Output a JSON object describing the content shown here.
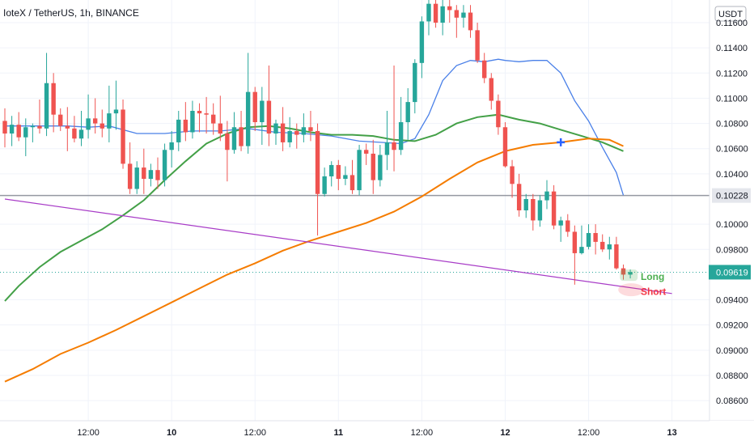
{
  "header": {
    "title": "IoteX / TetherUS, 1h, BINANCE"
  },
  "chart_data": {
    "type": "candlestick",
    "currency_label": "USDT",
    "y_ticks": [
      "0.11600",
      "0.11400",
      "0.11200",
      "0.11000",
      "0.10800",
      "0.10600",
      "0.10400",
      "0.10000",
      "0.09800",
      "0.09400",
      "0.09200",
      "0.09000",
      "0.08800",
      "0.08600"
    ],
    "x_ticks": [
      {
        "label": "12:00",
        "bold": false,
        "t": 3
      },
      {
        "label": "10",
        "bold": true,
        "t": 15
      },
      {
        "label": "12:00",
        "bold": false,
        "t": 27
      },
      {
        "label": "11",
        "bold": true,
        "t": 39
      },
      {
        "label": "12:00",
        "bold": false,
        "t": 51
      },
      {
        "label": "12",
        "bold": true,
        "t": 63
      },
      {
        "label": "12:00",
        "bold": false,
        "t": 75
      },
      {
        "label": "13",
        "bold": true,
        "t": 87
      }
    ],
    "ylim": [
      0.0844,
      0.1178
    ],
    "price_level": {
      "value": 0.10228,
      "label": "0.10228"
    },
    "last_price": {
      "value": 0.09619,
      "label": "0.09619"
    },
    "annotations": [
      {
        "text": "Long",
        "color": "#4caf50",
        "value": 0.09583
      },
      {
        "text": "Short",
        "color": "#f23645",
        "value": 0.09465
      }
    ],
    "candles": [
      [
        -9,
        0.1082,
        0.1092,
        0.1061,
        0.1072
      ],
      [
        -8,
        0.1072,
        0.1086,
        0.1062,
        0.1079
      ],
      [
        -7,
        0.1079,
        0.1089,
        0.1066,
        0.1069
      ],
      [
        -6,
        0.1069,
        0.1084,
        0.1054,
        0.1077
      ],
      [
        -5,
        0.1077,
        0.108,
        0.1065,
        0.1078
      ],
      [
        -4,
        0.1078,
        0.1099,
        0.1072,
        0.1076
      ],
      [
        -3,
        0.1076,
        0.1136,
        0.107,
        0.1112
      ],
      [
        -2,
        0.1112,
        0.112,
        0.1073,
        0.1087
      ],
      [
        -1,
        0.1087,
        0.1092,
        0.1074,
        0.1078
      ],
      [
        0,
        0.1078,
        0.1093,
        0.1058,
        0.1076
      ],
      [
        1,
        0.1076,
        0.1086,
        0.1065,
        0.1068
      ],
      [
        2,
        0.1068,
        0.109,
        0.1062,
        0.1075
      ],
      [
        3,
        0.1075,
        0.1103,
        0.1068,
        0.1084
      ],
      [
        4,
        0.1084,
        0.11,
        0.1072,
        0.108
      ],
      [
        5,
        0.108,
        0.1091,
        0.1069,
        0.1076
      ],
      [
        6,
        0.1076,
        0.111,
        0.1065,
        0.1088
      ],
      [
        7,
        0.1088,
        0.1114,
        0.1075,
        0.1091
      ],
      [
        8,
        0.1091,
        0.1099,
        0.1044,
        0.1048
      ],
      [
        9,
        0.1048,
        0.1065,
        0.1024,
        0.1028
      ],
      [
        10,
        0.1028,
        0.105,
        0.1024,
        0.1045
      ],
      [
        11,
        0.1045,
        0.106,
        0.1024,
        0.1036
      ],
      [
        12,
        0.1036,
        0.1048,
        0.103,
        0.1043
      ],
      [
        13,
        0.1043,
        0.1053,
        0.1028,
        0.1035
      ],
      [
        14,
        0.1035,
        0.1064,
        0.103,
        0.1059
      ],
      [
        15,
        0.1059,
        0.1074,
        0.1045,
        0.1065
      ],
      [
        16,
        0.1065,
        0.109,
        0.1058,
        0.1083
      ],
      [
        17,
        0.1083,
        0.1097,
        0.1066,
        0.1073
      ],
      [
        18,
        0.1073,
        0.1098,
        0.1068,
        0.109
      ],
      [
        19,
        0.109,
        0.1096,
        0.1073,
        0.1088
      ],
      [
        20,
        0.1088,
        0.1101,
        0.1072,
        0.1087
      ],
      [
        21,
        0.1087,
        0.1096,
        0.1071,
        0.108
      ],
      [
        22,
        0.108,
        0.1102,
        0.1066,
        0.1072
      ],
      [
        23,
        0.1072,
        0.1082,
        0.1034,
        0.1059
      ],
      [
        24,
        0.1059,
        0.1089,
        0.1056,
        0.1077
      ],
      [
        25,
        0.1077,
        0.109,
        0.1058,
        0.1062
      ],
      [
        26,
        0.1062,
        0.1136,
        0.1056,
        0.1105
      ],
      [
        27,
        0.1105,
        0.1109,
        0.1074,
        0.1081
      ],
      [
        28,
        0.1081,
        0.1109,
        0.1063,
        0.1098
      ],
      [
        29,
        0.1098,
        0.1126,
        0.1062,
        0.1072
      ],
      [
        30,
        0.1072,
        0.1083,
        0.1063,
        0.108
      ],
      [
        31,
        0.108,
        0.1093,
        0.1058,
        0.1065
      ],
      [
        32,
        0.1065,
        0.1085,
        0.1061,
        0.1074
      ],
      [
        33,
        0.1074,
        0.108,
        0.106,
        0.1071
      ],
      [
        34,
        0.1071,
        0.1088,
        0.1065,
        0.1077
      ],
      [
        35,
        0.1077,
        0.109,
        0.1066,
        0.1074
      ],
      [
        36,
        0.1074,
        0.108,
        0.0991,
        0.1024
      ],
      [
        37,
        0.1024,
        0.1045,
        0.1022,
        0.1038
      ],
      [
        38,
        0.1038,
        0.105,
        0.103,
        0.1047
      ],
      [
        39,
        0.1047,
        0.1051,
        0.1027,
        0.1036
      ],
      [
        40,
        0.1036,
        0.1046,
        0.1031,
        0.1039
      ],
      [
        41,
        0.1039,
        0.1051,
        0.1024,
        0.1027
      ],
      [
        42,
        0.1027,
        0.1063,
        0.1023,
        0.1059
      ],
      [
        43,
        0.1059,
        0.1064,
        0.1047,
        0.1056
      ],
      [
        44,
        0.1056,
        0.1067,
        0.1024,
        0.1035
      ],
      [
        45,
        0.1035,
        0.1063,
        0.103,
        0.1055
      ],
      [
        46,
        0.1055,
        0.109,
        0.1043,
        0.1065
      ],
      [
        47,
        0.1065,
        0.1126,
        0.1042,
        0.1059
      ],
      [
        48,
        0.1059,
        0.1101,
        0.1055,
        0.1081
      ],
      [
        49,
        0.1081,
        0.1108,
        0.1067,
        0.1097
      ],
      [
        50,
        0.1097,
        0.1131,
        0.1088,
        0.1128
      ],
      [
        51,
        0.1128,
        0.1165,
        0.1116,
        0.1161
      ],
      [
        52,
        0.1161,
        0.1178,
        0.115,
        0.1175
      ],
      [
        53,
        0.1175,
        0.118,
        0.1156,
        0.116
      ],
      [
        54,
        0.116,
        0.1178,
        0.115,
        0.1173
      ],
      [
        55,
        0.1173,
        0.118,
        0.116,
        0.117
      ],
      [
        56,
        0.117,
        0.1174,
        0.1148,
        0.1164
      ],
      [
        57,
        0.1164,
        0.1174,
        0.1156,
        0.1168
      ],
      [
        58,
        0.1168,
        0.1174,
        0.1148,
        0.1154
      ],
      [
        59,
        0.1154,
        0.116,
        0.1128,
        0.113
      ],
      [
        60,
        0.113,
        0.1136,
        0.1112,
        0.1116
      ],
      [
        61,
        0.1116,
        0.112,
        0.1091,
        0.1098
      ],
      [
        62,
        0.1098,
        0.1103,
        0.1071,
        0.1077
      ],
      [
        63,
        0.1077,
        0.1081,
        0.1045,
        0.1046
      ],
      [
        64,
        0.1046,
        0.1051,
        0.1021,
        0.1032
      ],
      [
        65,
        0.1032,
        0.104,
        0.1006,
        0.1011
      ],
      [
        66,
        0.1011,
        0.1024,
        0.1005,
        0.102
      ],
      [
        67,
        0.102,
        0.1024,
        0.0995,
        0.1003
      ],
      [
        68,
        0.1003,
        0.1023,
        0.0998,
        0.1019
      ],
      [
        69,
        0.1019,
        0.1035,
        0.1012,
        0.1026
      ],
      [
        70,
        0.1026,
        0.1031,
        0.0996,
        0.0999
      ],
      [
        71,
        0.0999,
        0.1006,
        0.0986,
        0.1003
      ],
      [
        72,
        0.1003,
        0.1008,
        0.099,
        0.0994
      ],
      [
        73,
        0.0994,
        0.0999,
        0.0952,
        0.0977
      ],
      [
        74,
        0.0977,
        0.0999,
        0.0976,
        0.0982
      ],
      [
        75,
        0.0982,
        0.1,
        0.098,
        0.0993
      ],
      [
        76,
        0.0993,
        0.1,
        0.0976,
        0.0986
      ],
      [
        77,
        0.0986,
        0.0992,
        0.0978,
        0.098
      ],
      [
        78,
        0.098,
        0.099,
        0.0972,
        0.0984
      ],
      [
        79,
        0.0984,
        0.099,
        0.0964,
        0.0965
      ],
      [
        80,
        0.0965,
        0.0968,
        0.0956,
        0.096
      ],
      [
        81,
        0.096,
        0.0964,
        0.0957,
        0.0962
      ]
    ],
    "series": [
      {
        "color": "#4a80e8",
        "values": [
          [
            -9,
            0.1078
          ],
          [
            0,
            0.1078
          ],
          [
            3,
            0.1077
          ],
          [
            6,
            0.1078
          ],
          [
            10,
            0.1072
          ],
          [
            14,
            0.1072
          ],
          [
            18,
            0.1074
          ],
          [
            22,
            0.1074
          ],
          [
            26,
            0.1076
          ],
          [
            30,
            0.1073
          ],
          [
            34,
            0.1072
          ],
          [
            38,
            0.107
          ],
          [
            42,
            0.1066
          ],
          [
            45,
            0.1065
          ],
          [
            48,
            0.1064
          ],
          [
            50,
            0.1068
          ],
          [
            52,
            0.1087
          ],
          [
            54,
            0.1114
          ],
          [
            56,
            0.1126
          ],
          [
            58,
            0.113
          ],
          [
            60,
            0.1129
          ],
          [
            62,
            0.1131
          ],
          [
            63,
            0.113
          ],
          [
            65,
            0.1129
          ],
          [
            67,
            0.113
          ],
          [
            69,
            0.113
          ],
          [
            71,
            0.112
          ],
          [
            73,
            0.1098
          ],
          [
            75,
            0.1082
          ],
          [
            77,
            0.1061
          ],
          [
            79,
            0.1041
          ],
          [
            80,
            0.1023
          ]
        ]
      },
      {
        "color": "#43a047",
        "values": [
          [
            -9,
            0.0939
          ],
          [
            -7,
            0.0951
          ],
          [
            -4,
            0.0966
          ],
          [
            -1,
            0.0978
          ],
          [
            2,
            0.0987
          ],
          [
            5,
            0.0996
          ],
          [
            8,
            0.1007
          ],
          [
            11,
            0.1019
          ],
          [
            14,
            0.1035
          ],
          [
            17,
            0.105
          ],
          [
            20,
            0.1064
          ],
          [
            23,
            0.1072
          ],
          [
            26,
            0.1077
          ],
          [
            29,
            0.1078
          ],
          [
            32,
            0.1076
          ],
          [
            35,
            0.1073
          ],
          [
            38,
            0.1071
          ],
          [
            41,
            0.1071
          ],
          [
            44,
            0.107
          ],
          [
            47,
            0.1067
          ],
          [
            50,
            0.1066
          ],
          [
            53,
            0.1071
          ],
          [
            56,
            0.108
          ],
          [
            59,
            0.1085
          ],
          [
            62,
            0.1087
          ],
          [
            65,
            0.1083
          ],
          [
            68,
            0.108
          ],
          [
            71,
            0.1075
          ],
          [
            74,
            0.107
          ],
          [
            77,
            0.1065
          ],
          [
            80,
            0.1058
          ]
        ]
      },
      {
        "color": "#f57c00",
        "values": [
          [
            -9,
            0.0875
          ],
          [
            -5,
            0.0885
          ],
          [
            -1,
            0.0897
          ],
          [
            3,
            0.0906
          ],
          [
            7,
            0.0916
          ],
          [
            11,
            0.0927
          ],
          [
            15,
            0.0938
          ],
          [
            19,
            0.0949
          ],
          [
            23,
            0.096
          ],
          [
            27,
            0.0969
          ],
          [
            31,
            0.0979
          ],
          [
            35,
            0.0987
          ],
          [
            39,
            0.0994
          ],
          [
            43,
            0.1001
          ],
          [
            47,
            0.101
          ],
          [
            51,
            0.1022
          ],
          [
            55,
            0.1036
          ],
          [
            59,
            0.1049
          ],
          [
            63,
            0.1058
          ],
          [
            67,
            0.1063
          ],
          [
            71,
            0.1065
          ],
          [
            75,
            0.1068
          ],
          [
            78,
            0.1067
          ],
          [
            80,
            0.1062
          ]
        ]
      },
      {
        "color": "#a83cc7",
        "values": [
          [
            -9,
            0.102
          ],
          [
            87,
            0.0945
          ]
        ]
      }
    ]
  }
}
